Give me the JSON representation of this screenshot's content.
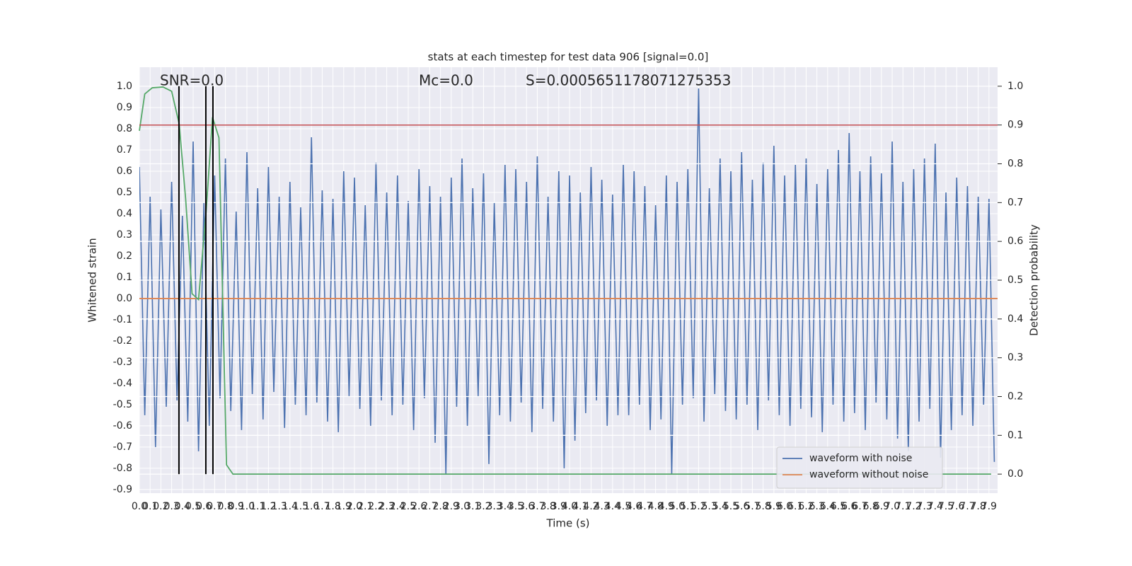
{
  "chart_data": {
    "type": "line",
    "title": "stats at each timestep for test data 906 [signal=0.0]",
    "xlabel": "Time (s)",
    "ylabel": "Whitened strain",
    "y2label": "Detection probability",
    "annotations": [
      "SNR=0.0",
      "Mc=0.0",
      "S=0.0005651178071275353"
    ],
    "xlim": [
      0,
      7.98
    ],
    "ylim": [
      -0.917,
      1.09
    ],
    "y2lim": [
      -0.049,
      1.049
    ],
    "xticks": [
      {
        "value": 0,
        "label": "0.0"
      },
      0.1,
      0.2,
      0.3,
      0.4,
      0.5,
      0.6,
      0.7,
      0.8,
      0.9,
      {
        "value": 1,
        "label": "1.0"
      },
      1.1,
      1.2,
      1.3,
      1.4,
      1.5,
      1.6,
      1.7,
      1.8,
      1.9,
      {
        "value": 2,
        "label": "2.0"
      },
      2.1,
      2.2,
      2.3,
      2.4,
      2.5,
      2.6,
      2.7,
      2.8,
      2.9,
      {
        "value": 3,
        "label": "3.0"
      },
      3.1,
      3.2,
      3.3,
      3.4,
      3.5,
      3.6,
      3.7,
      3.8,
      3.9,
      {
        "value": 4,
        "label": "4.0"
      },
      4.1,
      4.2,
      4.3,
      4.4,
      4.5,
      4.6,
      4.7,
      4.8,
      4.9,
      {
        "value": 5,
        "label": "5.0"
      },
      5.1,
      5.2,
      5.3,
      5.4,
      5.5,
      5.6,
      5.7,
      5.8,
      5.9,
      {
        "value": 6,
        "label": "6.0"
      },
      6.1,
      6.2,
      6.3,
      6.4,
      6.5,
      6.6,
      6.7,
      6.8,
      6.9,
      {
        "value": 7,
        "label": "7.0"
      },
      7.1,
      7.2,
      7.3,
      7.4,
      7.5,
      7.6,
      7.7,
      7.8,
      7.9
    ],
    "yticks": [
      {
        "value": 1,
        "label": "1.0"
      },
      0.9,
      0.8,
      0.7,
      0.6,
      0.5,
      0.4,
      0.3,
      0.2,
      0.1,
      {
        "value": 0,
        "label": "0.0"
      },
      -0.1,
      -0.2,
      -0.3,
      -0.4,
      -0.5,
      -0.6,
      -0.7,
      -0.8,
      -0.9
    ],
    "y2ticks": [
      {
        "value": 0,
        "label": "0.0"
      },
      0.1,
      0.2,
      0.3,
      0.4,
      0.5,
      0.6,
      0.7,
      0.8,
      0.9,
      {
        "value": 1,
        "label": "1.0"
      }
    ],
    "grid": true,
    "legend": "lower right",
    "series": [
      {
        "name": "waveform with noise",
        "color": "#4c72b0",
        "axis": "y",
        "x": [
          0,
          0.05,
          0.1,
          0.15,
          0.2,
          0.25,
          0.3,
          0.35,
          0.4,
          0.45,
          0.5,
          0.55,
          0.6,
          0.65,
          0.7,
          0.75,
          0.8,
          0.85,
          0.9,
          0.95,
          1,
          1.05,
          1.1,
          1.15,
          1.2,
          1.25,
          1.3,
          1.35,
          1.4,
          1.45,
          1.5,
          1.55,
          1.6,
          1.65,
          1.7,
          1.75,
          1.8,
          1.85,
          1.9,
          1.95,
          2,
          2.05,
          2.1,
          2.15,
          2.2,
          2.25,
          2.3,
          2.35,
          2.4,
          2.45,
          2.5,
          2.55,
          2.6,
          2.65,
          2.7,
          2.75,
          2.8,
          2.85,
          2.9,
          2.95,
          3,
          3.05,
          3.1,
          3.15,
          3.2,
          3.25,
          3.3,
          3.35,
          3.4,
          3.45,
          3.5,
          3.55,
          3.6,
          3.65,
          3.7,
          3.75,
          3.8,
          3.85,
          3.9,
          3.95,
          4,
          4.05,
          4.1,
          4.15,
          4.2,
          4.25,
          4.3,
          4.35,
          4.4,
          4.45,
          4.5,
          4.55,
          4.6,
          4.65,
          4.7,
          4.75,
          4.8,
          4.85,
          4.9,
          4.95,
          5,
          5.05,
          5.1,
          5.15,
          5.2,
          5.25,
          5.3,
          5.35,
          5.4,
          5.45,
          5.5,
          5.55,
          5.6,
          5.65,
          5.7,
          5.75,
          5.8,
          5.85,
          5.9,
          5.95,
          6,
          6.05,
          6.1,
          6.15,
          6.2,
          6.25,
          6.3,
          6.35,
          6.4,
          6.45,
          6.5,
          6.55,
          6.6,
          6.65,
          6.7,
          6.75,
          6.8,
          6.85,
          6.9,
          6.95,
          7,
          7.05,
          7.1,
          7.15,
          7.2,
          7.25,
          7.3,
          7.35,
          7.4,
          7.45,
          7.5,
          7.55,
          7.6,
          7.65,
          7.7,
          7.75,
          7.8,
          7.85,
          7.9,
          7.95
        ],
        "values": [
          0.62,
          -0.55,
          0.48,
          -0.7,
          0.42,
          -0.51,
          0.55,
          -0.48,
          0.39,
          -0.58,
          0.74,
          -0.72,
          0.45,
          -0.6,
          0.58,
          -0.47,
          0.66,
          -0.53,
          0.41,
          -0.62,
          0.69,
          -0.45,
          0.52,
          -0.57,
          0.62,
          -0.44,
          0.48,
          -0.61,
          0.55,
          -0.5,
          0.43,
          -0.55,
          0.76,
          -0.49,
          0.51,
          -0.58,
          0.47,
          -0.63,
          0.6,
          -0.46,
          0.57,
          -0.52,
          0.44,
          -0.6,
          0.64,
          -0.48,
          0.5,
          -0.55,
          0.58,
          -0.5,
          0.46,
          -0.62,
          0.61,
          -0.47,
          0.53,
          -0.68,
          0.48,
          -0.83,
          0.57,
          -0.51,
          0.66,
          -0.6,
          0.52,
          -0.46,
          0.59,
          -0.78,
          0.45,
          -0.55,
          0.63,
          -0.58,
          0.61,
          -0.49,
          0.55,
          -0.63,
          0.67,
          -0.52,
          0.48,
          -0.58,
          0.6,
          -0.8,
          0.58,
          -0.67,
          0.5,
          -0.54,
          0.62,
          -0.48,
          0.56,
          -0.6,
          0.49,
          -0.55,
          0.63,
          -0.55,
          0.6,
          -0.5,
          0.53,
          -0.62,
          0.44,
          -0.57,
          0.58,
          -0.83,
          0.55,
          -0.5,
          0.61,
          -0.47,
          0.99,
          -0.58,
          0.52,
          -0.45,
          0.66,
          -0.53,
          0.6,
          -0.57,
          0.69,
          -0.5,
          0.56,
          -0.62,
          0.64,
          -0.48,
          0.72,
          -0.55,
          0.58,
          -0.6,
          0.63,
          -0.52,
          0.66,
          -0.56,
          0.54,
          -0.63,
          0.61,
          -0.5,
          0.7,
          -0.58,
          0.78,
          -0.54,
          0.6,
          -0.62,
          0.67,
          -0.49,
          0.59,
          -0.57,
          0.74,
          -0.66,
          0.55,
          -0.72,
          0.61,
          -0.58,
          0.66,
          -0.52,
          0.73,
          -0.75,
          0.5,
          -0.62,
          0.57,
          -0.55,
          0.53,
          -0.6,
          0.48,
          -0.5,
          0.47,
          -0.77
        ]
      },
      {
        "name": "waveform without noise",
        "color": "#dd8452",
        "axis": "y",
        "x": [
          0,
          7.98
        ],
        "values": [
          0,
          0
        ]
      },
      {
        "color": "#55a868",
        "axis": "y2",
        "x": [
          0,
          0.05,
          0.12,
          0.22,
          0.3,
          0.37,
          0.43,
          0.49,
          0.55,
          0.62,
          0.68,
          0.74,
          0.8,
          0.81,
          0.87,
          7.92
        ],
        "values": [
          0.885,
          0.98,
          0.996,
          0.998,
          0.987,
          0.903,
          0.71,
          0.465,
          0.45,
          0.675,
          0.92,
          0.867,
          0.146,
          0.024,
          0,
          0
        ]
      }
    ],
    "hlines": [
      {
        "value": 0.9,
        "axis": "y2",
        "color": "#c44e52"
      }
    ],
    "vlines": {
      "x": [
        0.368,
        0.618,
        0.684
      ],
      "y2range": [
        0,
        1
      ],
      "color": "#000000"
    }
  }
}
